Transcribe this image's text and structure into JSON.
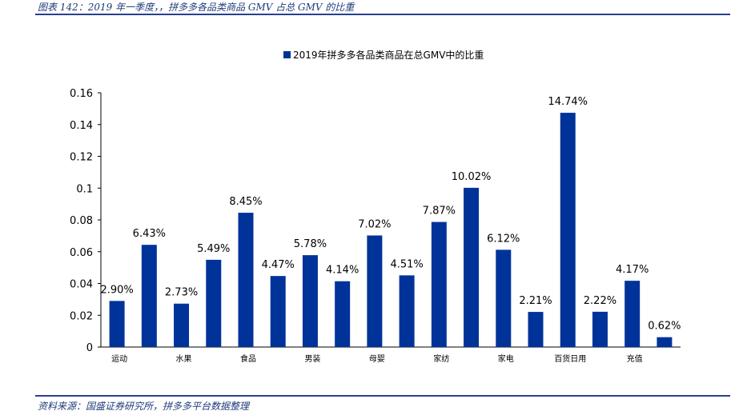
{
  "figure": {
    "title": "图表 142：2019 年一季度，，拼多多各品类商品 GMV 占总 GMV 的比重",
    "source": "资料来源：国盛证券研究所，拼多多平台数据整理"
  },
  "colors": {
    "bar": "#003399",
    "rule": "#2a3f8f",
    "caption": "#1f3a7a"
  },
  "chart_data": {
    "type": "bar",
    "legend": "2019年拼多多各品类商品在总GMV中的比重",
    "legend_position": "top-center",
    "values": [
      0.029,
      0.0643,
      0.0273,
      0.0549,
      0.0845,
      0.0447,
      0.0578,
      0.0414,
      0.0702,
      0.0451,
      0.0787,
      0.1002,
      0.0612,
      0.0221,
      0.1474,
      0.0222,
      0.0417,
      0.0062
    ],
    "data_labels": [
      "2.90%",
      "6.43%",
      "2.73%",
      "5.49%",
      "8.45%",
      "4.47%",
      "5.78%",
      "4.14%",
      "7.02%",
      "4.51%",
      "7.87%",
      "10.02%",
      "6.12%",
      "2.21%",
      "14.74%",
      "2.22%",
      "4.17%",
      "0.62%"
    ],
    "category_labels": [
      "运动",
      "",
      "水果",
      "",
      "食品",
      "",
      "男装",
      "",
      "母婴",
      "",
      "家纺",
      "",
      "家电",
      "",
      "百货日用",
      "",
      "充值",
      ""
    ],
    "yticks": [
      "0",
      "0.02",
      "0.04",
      "0.06",
      "0.08",
      "0.1",
      "0.12",
      "0.14",
      "0.16"
    ],
    "ylim": [
      0,
      0.16
    ],
    "grid": false
  }
}
